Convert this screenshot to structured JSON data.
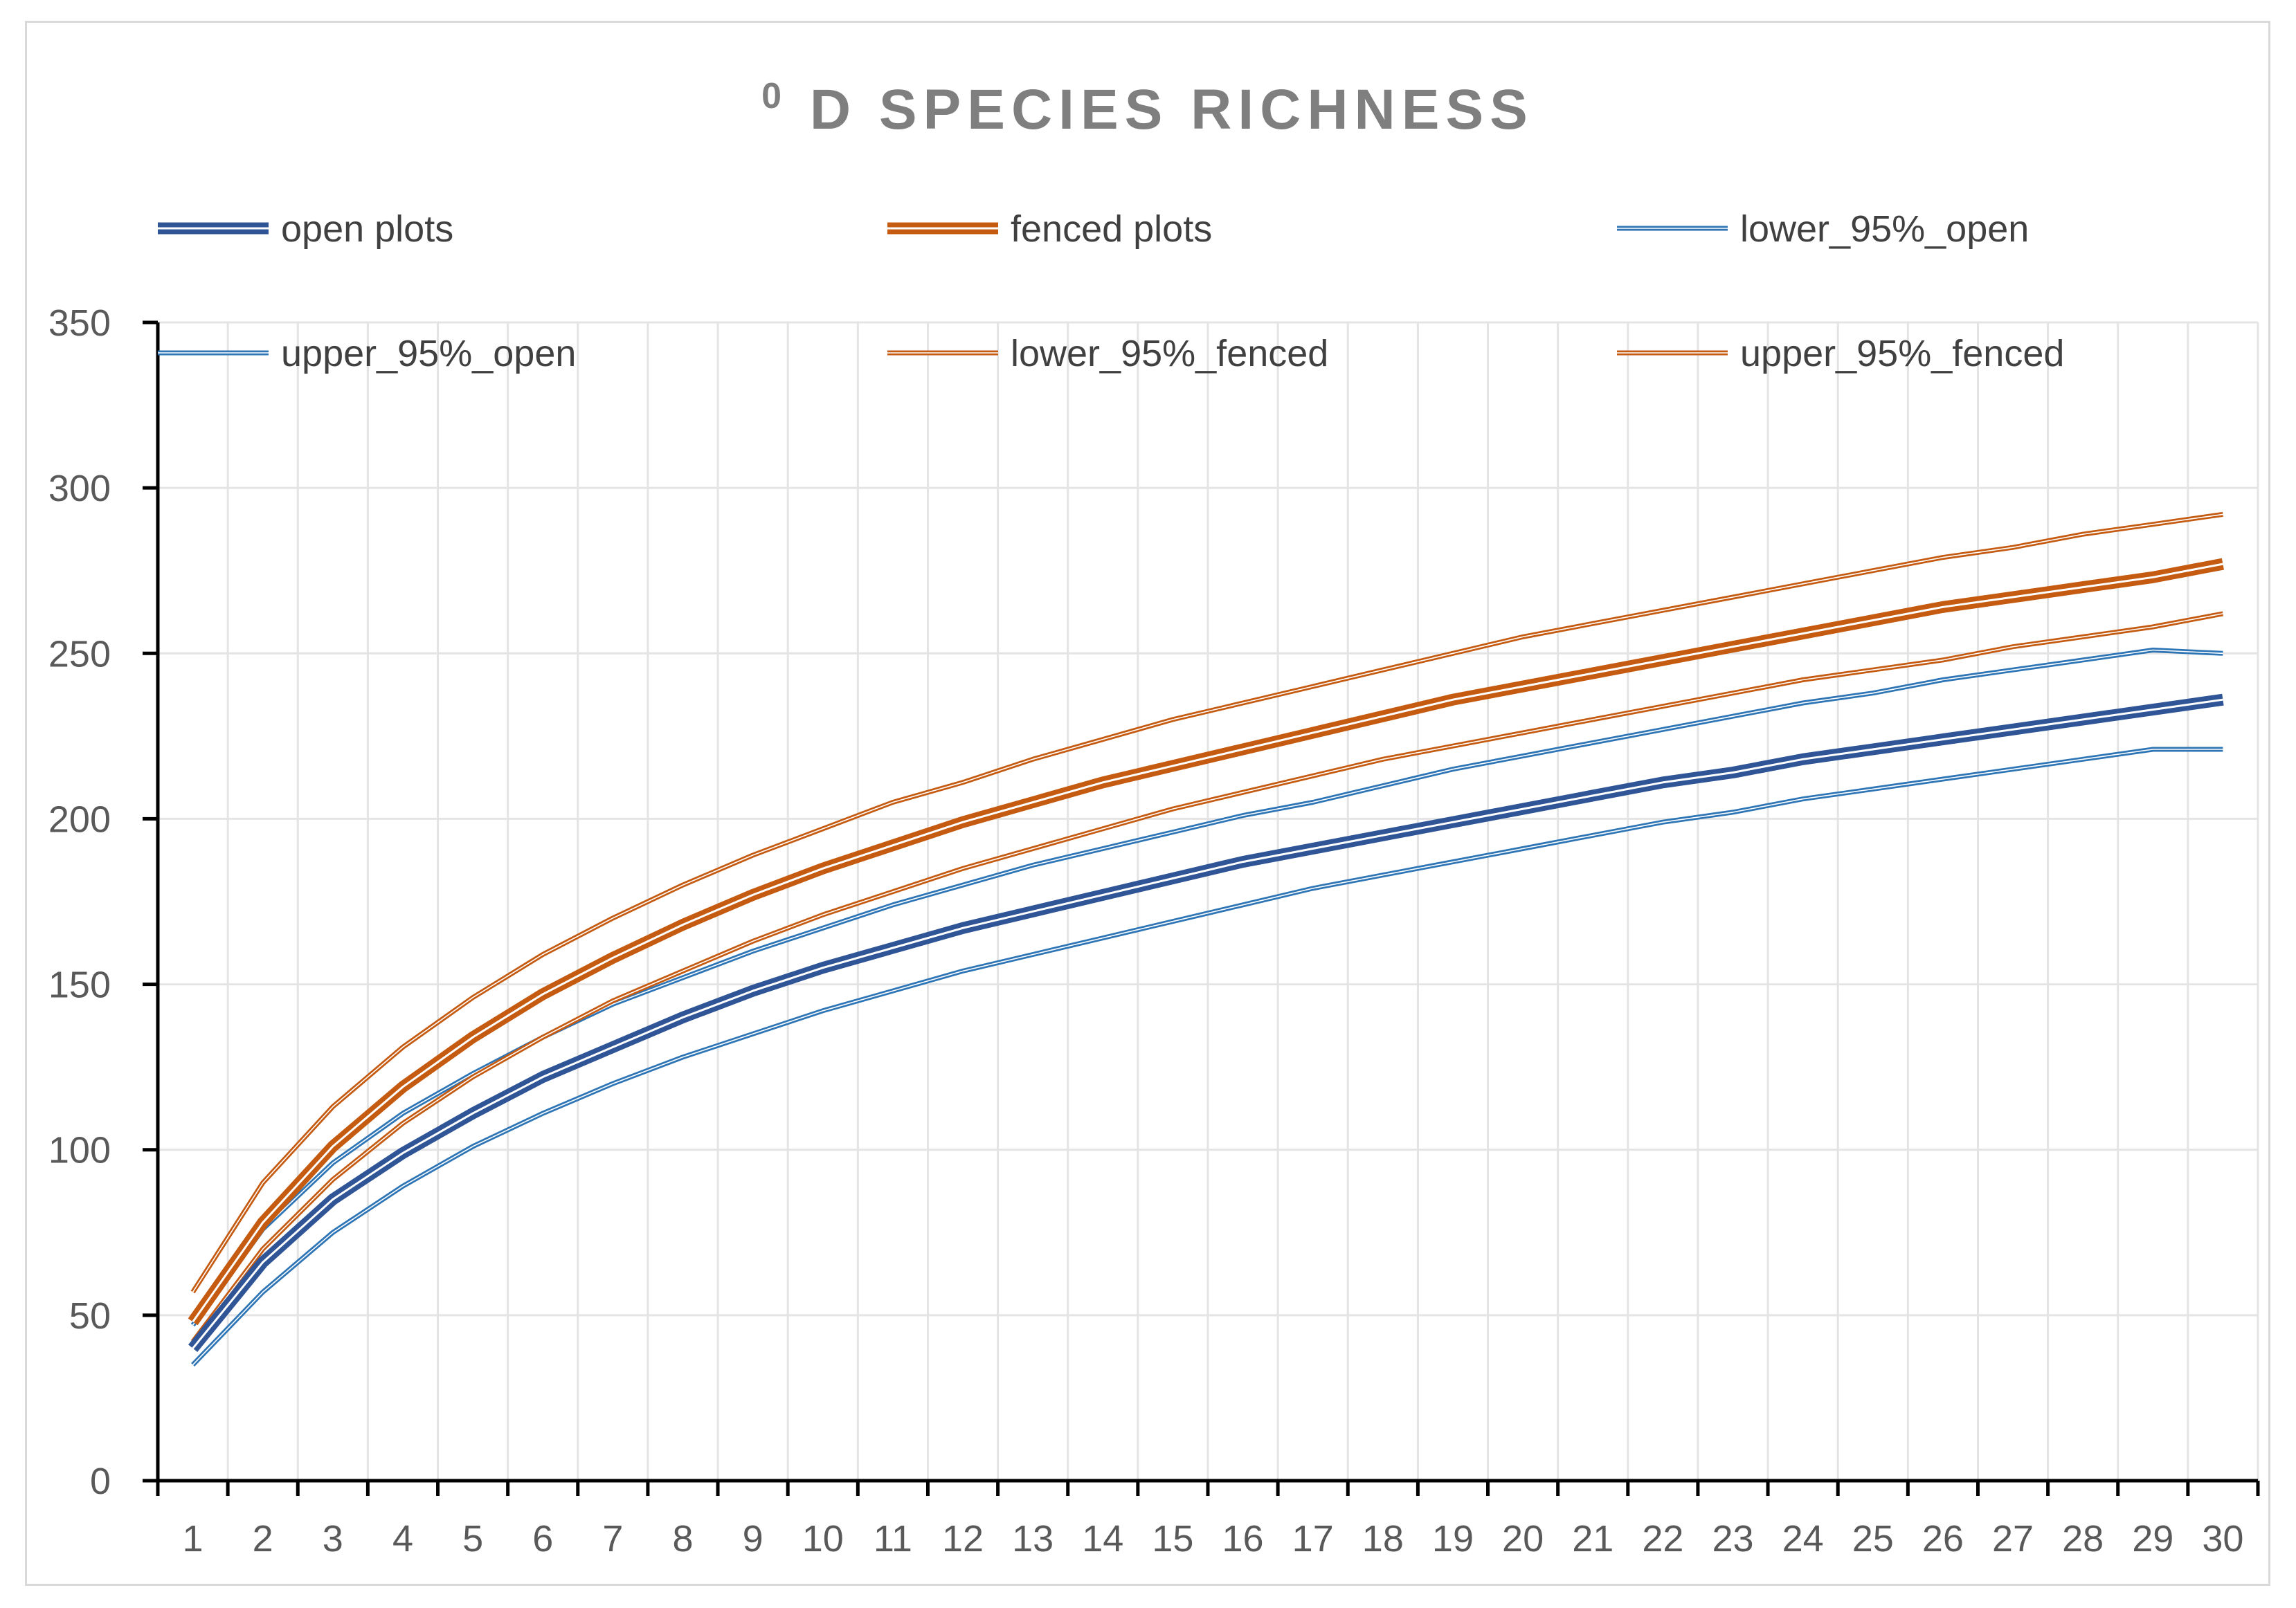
{
  "chart_data": {
    "type": "line",
    "title": "D SPECIES RICHNESS",
    "title_superscript": "0",
    "xlabel": "",
    "ylabel": "",
    "grid": true,
    "legend_position": "top",
    "x": [
      1,
      2,
      3,
      4,
      5,
      6,
      7,
      8,
      9,
      10,
      11,
      12,
      13,
      14,
      15,
      16,
      17,
      18,
      19,
      20,
      21,
      22,
      23,
      24,
      25,
      26,
      27,
      28,
      29,
      30
    ],
    "x_tick_labels": [
      "1",
      "2",
      "3",
      "4",
      "5",
      "6",
      "7",
      "8",
      "9",
      "10",
      "11",
      "12",
      "13",
      "14",
      "15",
      "16",
      "17",
      "18",
      "19",
      "20",
      "21",
      "22",
      "23",
      "24",
      "25",
      "26",
      "27",
      "28",
      "29",
      "30"
    ],
    "ylim": [
      0,
      350
    ],
    "y_ticks": [
      0,
      50,
      100,
      150,
      200,
      250,
      300,
      350
    ],
    "y_tick_labels": [
      "0",
      "50",
      "100",
      "150",
      "200",
      "250",
      "300",
      "350"
    ],
    "series": [
      {
        "name": "open plots",
        "color": "#2f5597",
        "weight": "thick",
        "values": [
          40,
          66,
          85,
          99,
          111,
          122,
          131,
          140,
          148,
          155,
          161,
          167,
          172,
          177,
          182,
          187,
          191,
          195,
          199,
          203,
          207,
          211,
          214,
          218,
          221,
          224,
          227,
          230,
          233,
          236
        ]
      },
      {
        "name": "fenced plots",
        "color": "#c55a11",
        "weight": "thick",
        "values": [
          48,
          78,
          101,
          119,
          134,
          147,
          158,
          168,
          177,
          185,
          192,
          199,
          205,
          211,
          216,
          221,
          226,
          231,
          236,
          240,
          244,
          248,
          252,
          256,
          260,
          264,
          267,
          270,
          273,
          277
        ]
      },
      {
        "name": "lower_95%_open",
        "color": "#2e75b6",
        "weight": "thin",
        "values": [
          35,
          57,
          75,
          89,
          101,
          111,
          120,
          128,
          135,
          142,
          148,
          154,
          159,
          164,
          169,
          174,
          179,
          183,
          187,
          191,
          195,
          199,
          202,
          206,
          209,
          212,
          215,
          218,
          221,
          221
        ]
      },
      {
        "name": "upper_95%_open",
        "color": "#2e75b6",
        "weight": "thin",
        "values": [
          47,
          76,
          96,
          111,
          123,
          134,
          144,
          152,
          160,
          167,
          174,
          180,
          186,
          191,
          196,
          201,
          205,
          210,
          215,
          219,
          223,
          227,
          231,
          235,
          238,
          242,
          245,
          248,
          251,
          250
        ]
      },
      {
        "name": "lower_95%_fenced",
        "color": "#c55a11",
        "weight": "thin",
        "values": [
          42,
          70,
          91,
          108,
          122,
          134,
          145,
          154,
          163,
          171,
          178,
          185,
          191,
          197,
          203,
          208,
          213,
          218,
          222,
          226,
          230,
          234,
          238,
          242,
          245,
          248,
          252,
          255,
          258,
          262
        ]
      },
      {
        "name": "upper_95%_fenced",
        "color": "#c55a11",
        "weight": "thin",
        "values": [
          57,
          90,
          113,
          131,
          146,
          159,
          170,
          180,
          189,
          197,
          205,
          211,
          218,
          224,
          230,
          235,
          240,
          245,
          250,
          255,
          259,
          263,
          267,
          271,
          275,
          279,
          282,
          286,
          289,
          292
        ]
      }
    ]
  }
}
